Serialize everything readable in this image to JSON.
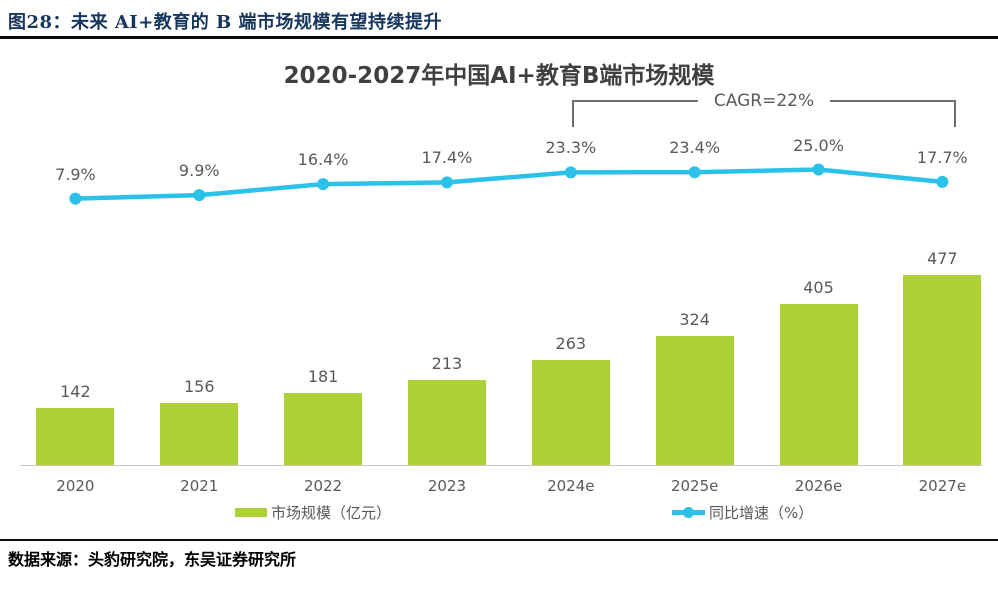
{
  "header": {
    "figure_title": "图28：未来 AI+教育的 B 端市场规模有望持续提升"
  },
  "footer": {
    "source": "数据来源：头豹研究院，东吴证券研究所"
  },
  "colors": {
    "bar_green": "#ACD037",
    "line_cyan": "#2BC1E8",
    "label_gray": "#595959",
    "header_navy": "#17365D",
    "bracket_gray": "#6e6e6e"
  },
  "chart_data": {
    "type": "bar",
    "combo": "bar+line",
    "title": "2020-2027年中国AI+教育B端市场规模",
    "categories": [
      "2020",
      "2021",
      "2022",
      "2023",
      "2024e",
      "2025e",
      "2026e",
      "2027e"
    ],
    "series": [
      {
        "name": "市场规模（亿元）",
        "type": "bar",
        "color": "#ACD037",
        "values": [
          142,
          156,
          181,
          213,
          263,
          324,
          405,
          477
        ],
        "value_labels": [
          "142",
          "156",
          "181",
          "213",
          "263",
          "324",
          "405",
          "477"
        ]
      },
      {
        "name": "同比增速（%）",
        "type": "line",
        "color": "#2BC1E8",
        "values": [
          7.9,
          9.9,
          16.4,
          17.4,
          23.3,
          23.4,
          25.0,
          17.7
        ],
        "value_labels": [
          "7.9%",
          "9.9%",
          "16.4%",
          "17.4%",
          "23.3%",
          "23.4%",
          "25.0%",
          "17.7%"
        ]
      }
    ],
    "annotation": {
      "label": "CAGR=22%",
      "span_categories": [
        "2024e",
        "2027e"
      ]
    },
    "legend": [
      {
        "label": "市场规模（亿元）",
        "color": "#ACD037",
        "marker": "bar-swatch"
      },
      {
        "label": "同比增速（%）",
        "color": "#2BC1E8",
        "marker": "line-dot"
      }
    ],
    "grid": false,
    "axes_visible": false,
    "legend_position": "bottom"
  }
}
